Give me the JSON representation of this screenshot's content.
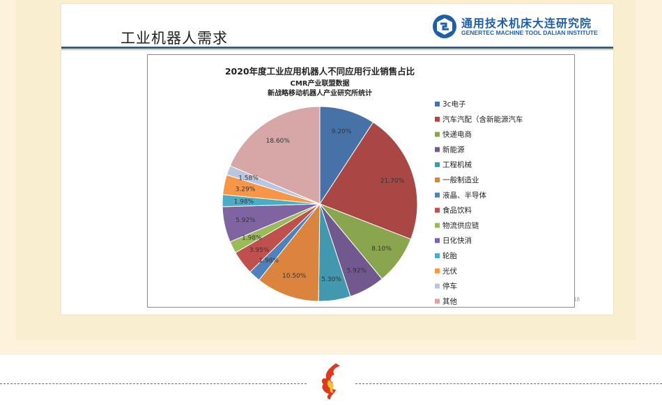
{
  "slide": {
    "title": "工业机器人需求",
    "page_number": "18",
    "logo": {
      "name_cn": "通用技术机床大连研究院",
      "name_en": "GENERTEC MACHINE TOOL DALIAN INSTITUTE",
      "color": "#1f5fa8"
    }
  },
  "chart_data": {
    "type": "pie",
    "title": "2020年度工业应用机器人不同应用行业销售占比",
    "subtitle_lines": [
      "CMR产业联盟数据",
      "新战略移动机器人产业研究所统计"
    ],
    "categories": [
      "3c电子",
      "汽车汽配（含新能源汽车",
      "快递电商",
      "新能源",
      "工程机械",
      "一般制造业",
      "液晶、半导体",
      "食品饮料",
      "物流供应链",
      "日化快消",
      "轮胎",
      "光伏",
      "停车",
      "其他"
    ],
    "values": [
      9.2,
      21.7,
      8.1,
      5.92,
      5.3,
      10.5,
      1.98,
      3.95,
      1.98,
      5.92,
      1.98,
      3.29,
      1.58,
      18.6
    ],
    "data_labels": [
      "9.20%",
      "21.70%",
      "8.10%",
      "5.92%",
      "5.30%",
      "10.50%",
      "1.98%",
      "3.95%",
      "1.98%",
      "5.92%",
      "1.98%",
      "3.29%",
      "1.58%",
      "18.60%"
    ],
    "colors": [
      "#4672a8",
      "#a94744",
      "#89a54e",
      "#71588f",
      "#4198af",
      "#db843d",
      "#4f81bd",
      "#c0504d",
      "#9bbb59",
      "#8064a2",
      "#4bacc6",
      "#f79646",
      "#b9c6e0",
      "#d7a7a7"
    ],
    "legend_position": "right"
  },
  "decoration": {
    "divider_color": "#d93a20"
  }
}
